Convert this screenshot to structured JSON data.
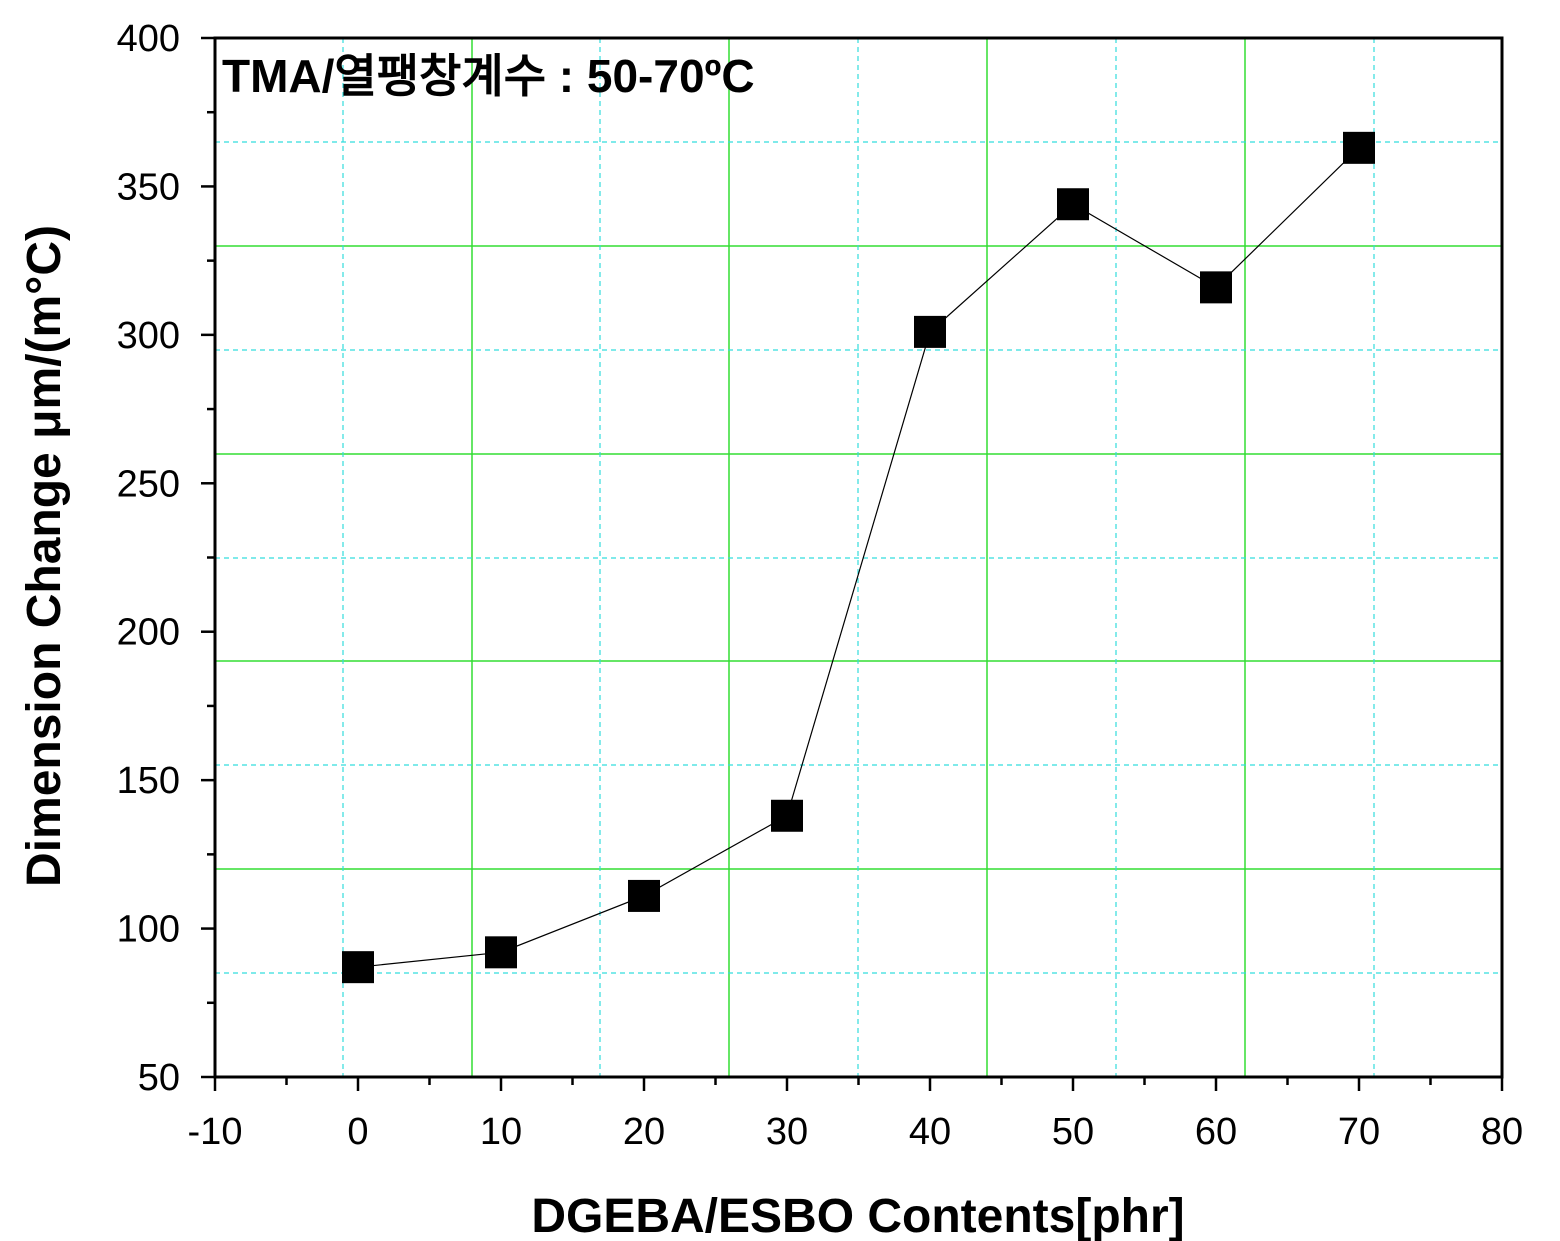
{
  "chart_data": {
    "type": "line",
    "title": "TMA/열팽창계수 : 50-70ºC",
    "xlabel": "DGEBA/ESBO Contents[phr]",
    "ylabel": "Dimension Change μm/(m°C)",
    "xlim": [
      -10,
      80
    ],
    "ylim": [
      50,
      400
    ],
    "xticks": [
      "-10",
      "0",
      "10",
      "20",
      "30",
      "40",
      "50",
      "60",
      "70",
      "80"
    ],
    "yticks": [
      "50",
      "100",
      "150",
      "200",
      "250",
      "300",
      "350",
      "400"
    ],
    "x": [
      0,
      10,
      20,
      30,
      40,
      50,
      60,
      70
    ],
    "series": [
      {
        "values": [
          87,
          92,
          111,
          138,
          301,
          344,
          316,
          363
        ]
      }
    ],
    "marker": "square",
    "line_color": "#000000",
    "marker_color": "#000000",
    "grid": true,
    "major_grid_color": "#33dd33",
    "minor_grid_color": "#33dddd"
  }
}
